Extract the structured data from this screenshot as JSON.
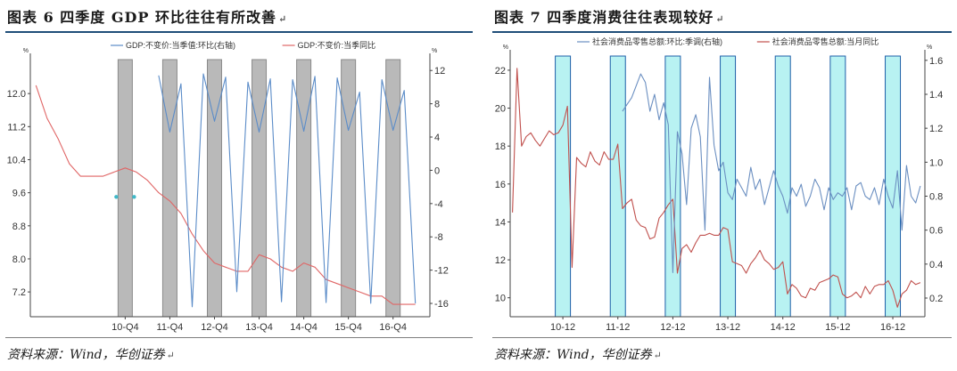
{
  "figures": [
    {
      "title": "图表 6   四季度 GDP 环比往往有所改善",
      "source": "资料来源：Wind，华创证券",
      "para_mark": "↵",
      "chart_data": {
        "type": "line",
        "legend": [
          "GDP:不变价:当季值:环比(右轴)",
          "GDP:不变价:当季同比"
        ],
        "legend_placement": "top-center",
        "yunit_left": "%",
        "yunit_right": "%",
        "y_left": {
          "range": [
            6.6,
            12.8
          ],
          "ticks": [
            "12.0",
            "11.2",
            "10.4",
            "9.6",
            "8.8",
            "8.0",
            "7.2"
          ],
          "tick_values": [
            12.0,
            11.2,
            10.4,
            9.6,
            8.8,
            8.0,
            7.2
          ]
        },
        "y_right": {
          "range": [
            -17.6,
            13.2
          ],
          "ticks": [
            "12",
            "8",
            "4",
            "0",
            "-4",
            "-8",
            "-12",
            "-16"
          ],
          "tick_values": [
            12,
            8,
            4,
            0,
            -4,
            -8,
            -12,
            -16
          ]
        },
        "x_ticks": [
          "10-Q4",
          "11-Q4",
          "12-Q4",
          "13-Q4",
          "14-Q4",
          "15-Q4",
          "16-Q4"
        ],
        "x_tick_pos": [
          8,
          12,
          16,
          20,
          24,
          28,
          32
        ],
        "x_range": [
          -0.5,
          35.3
        ],
        "shaded_quarters": [
          8,
          12,
          16,
          20,
          24,
          28,
          32
        ],
        "series": [
          {
            "name": "GDP:不变价:当季同比",
            "axis": "left",
            "color": "#e06666",
            "x": [
              0,
              1,
              2,
              3,
              4,
              5,
              6,
              7,
              8,
              9,
              10,
              11,
              12,
              13,
              14,
              15,
              16,
              17,
              18,
              19,
              20,
              21,
              22,
              23,
              24,
              25,
              26,
              27,
              28,
              29,
              30,
              31,
              32,
              33,
              34
            ],
            "values": [
              12.2,
              11.4,
              10.9,
              10.3,
              10.0,
              10.0,
              10.0,
              10.1,
              10.2,
              10.1,
              9.9,
              9.6,
              9.4,
              9.1,
              8.6,
              8.2,
              7.9,
              7.8,
              7.7,
              7.7,
              8.1,
              8.0,
              7.8,
              7.7,
              7.9,
              7.8,
              7.5,
              7.4,
              7.3,
              7.2,
              7.1,
              7.1,
              6.9,
              6.9,
              6.9
            ]
          },
          {
            "name": "GDP:不变价:当季值:环比(右轴)",
            "axis": "right",
            "color": "#5b8cc8",
            "x": [
              11,
              12,
              13,
              14,
              15,
              16,
              17,
              18,
              19,
              20,
              21,
              22,
              23,
              24,
              25,
              26,
              27,
              28,
              29,
              30,
              31,
              32,
              33,
              34
            ],
            "values": [
              11.4,
              4.6,
              10.4,
              -16.4,
              11.6,
              5.9,
              11.2,
              -14.6,
              10.6,
              4.6,
              11.0,
              -15.8,
              10.9,
              4.7,
              11.3,
              -15.9,
              11.1,
              4.8,
              9.4,
              -16.0,
              10.9,
              4.8,
              9.6,
              -16.0
            ]
          }
        ],
        "markers": {
          "x": [
            7.2,
            8.8
          ],
          "values": [
            9.5,
            9.5
          ]
        }
      }
    },
    {
      "title": "图表 7   四季度消费往往表现较好",
      "source": "资料来源：Wind，华创证券",
      "para_mark": "↵",
      "chart_data": {
        "type": "line",
        "legend": [
          "社会消费品零售总额:环比:季调(右轴)",
          "社会消费品零售总额:当月同比"
        ],
        "legend_placement": "top-center",
        "yunit_left": "%",
        "yunit_right": "%",
        "y_left": {
          "range": [
            9,
            22.7
          ],
          "ticks": [
            "22",
            "20",
            "18",
            "16",
            "14",
            "12",
            "10"
          ],
          "tick_values": [
            22,
            20,
            18,
            16,
            14,
            12,
            10
          ]
        },
        "y_right": {
          "range": [
            0.09,
            1.62
          ],
          "ticks": [
            "1.6",
            "1.4",
            "1.2",
            "1.0",
            "0.8",
            "0.6",
            "0.4",
            "0.2"
          ],
          "tick_values": [
            1.6,
            1.4,
            1.2,
            1.0,
            0.8,
            0.6,
            0.4,
            0.2
          ]
        },
        "x_ticks": [
          "10-12",
          "11-12",
          "12-12",
          "13-12",
          "14-12",
          "15-12",
          "16-12"
        ],
        "x_tick_pos": [
          11,
          23,
          35,
          47,
          59,
          71,
          83
        ],
        "x_range": [
          -0.5,
          90
        ],
        "shaded_months": [
          11,
          23,
          35,
          47,
          59,
          71,
          83
        ],
        "series": [
          {
            "name": "社会消费品零售总额:当月同比",
            "axis": "left",
            "color": "#c0504d",
            "x": [
              0,
              1,
              2,
              3,
              4,
              5,
              6,
              7,
              8,
              9,
              10,
              11,
              12,
              13,
              14,
              15,
              16,
              17,
              18,
              19,
              20,
              21,
              22,
              23,
              24,
              25,
              26,
              27,
              28,
              29,
              30,
              31,
              32,
              33,
              34,
              35,
              36,
              37,
              38,
              39,
              40,
              41,
              42,
              43,
              44,
              45,
              46,
              47,
              48,
              49,
              50,
              51,
              52,
              53,
              54,
              55,
              56,
              57,
              58,
              59,
              60,
              61,
              62,
              63,
              64,
              65,
              66,
              67,
              68,
              69,
              70,
              71,
              72,
              73,
              74,
              75,
              76,
              77,
              78,
              79,
              80,
              81,
              82,
              83,
              84,
              85,
              86,
              87,
              88,
              89
            ],
            "values": [
              14.5,
              22.1,
              18.0,
              18.5,
              18.7,
              18.3,
              18.0,
              18.4,
              18.8,
              18.6,
              18.7,
              19.1,
              20.1,
              11.6,
              17.4,
              17.1,
              16.9,
              17.7,
              17.2,
              17.0,
              17.7,
              17.3,
              17.3,
              18.1,
              14.7,
              15.0,
              15.2,
              14.1,
              13.8,
              13.7,
              13.1,
              13.2,
              14.2,
              14.5,
              14.9,
              15.2,
              11.3,
              12.6,
              12.8,
              12.4,
              12.9,
              13.3,
              13.3,
              13.4,
              13.3,
              13.3,
              13.7,
              13.6,
              11.9,
              11.8,
              11.7,
              11.3,
              11.8,
              12.1,
              12.5,
              12.0,
              11.8,
              11.5,
              11.6,
              11.9,
              10.2,
              10.7,
              10.5,
              10.1,
              10.0,
              10.5,
              10.4,
              10.8,
              10.9,
              11.0,
              11.2,
              11.1,
              10.2,
              10.0,
              10.1,
              10.3,
              10.0,
              10.6,
              10.2,
              10.6,
              10.7,
              10.7,
              10.9,
              10.4,
              9.5,
              10.2,
              10.4,
              10.9,
              10.7,
              10.8
            ]
          },
          {
            "name": "社会消费品零售总额:环比:季调(右轴)",
            "axis": "right",
            "color": "#6b8fc1",
            "x": [
              24,
              25,
              26,
              27,
              28,
              29,
              30,
              31,
              32,
              33,
              34,
              35,
              36,
              37,
              38,
              39,
              40,
              41,
              42,
              43,
              44,
              45,
              46,
              47,
              48,
              49,
              50,
              51,
              52,
              53,
              54,
              55,
              56,
              57,
              58,
              59,
              60,
              61,
              62,
              63,
              64,
              65,
              66,
              67,
              68,
              69,
              70,
              71,
              72,
              73,
              74,
              75,
              76,
              77,
              78,
              79,
              80,
              81,
              82,
              83,
              84,
              85,
              86,
              87,
              88,
              89
            ],
            "values": [
              1.3,
              1.34,
              1.38,
              1.45,
              1.52,
              1.47,
              1.3,
              1.4,
              1.25,
              1.35,
              1.22,
              0.35,
              1.18,
              1.05,
              0.75,
              1.2,
              1.28,
              1.15,
              0.6,
              1.5,
              1.1,
              0.95,
              1.0,
              0.82,
              0.78,
              0.9,
              0.85,
              0.8,
              0.97,
              0.84,
              0.9,
              0.75,
              0.85,
              0.95,
              0.86,
              0.8,
              0.7,
              0.85,
              0.8,
              0.87,
              0.74,
              0.8,
              0.9,
              0.85,
              0.72,
              0.85,
              0.78,
              0.82,
              0.8,
              0.85,
              0.72,
              0.86,
              0.88,
              0.8,
              0.78,
              0.85,
              0.75,
              0.9,
              0.8,
              0.73,
              0.95,
              0.6,
              0.98,
              0.8,
              0.76,
              0.86
            ]
          }
        ]
      }
    }
  ]
}
